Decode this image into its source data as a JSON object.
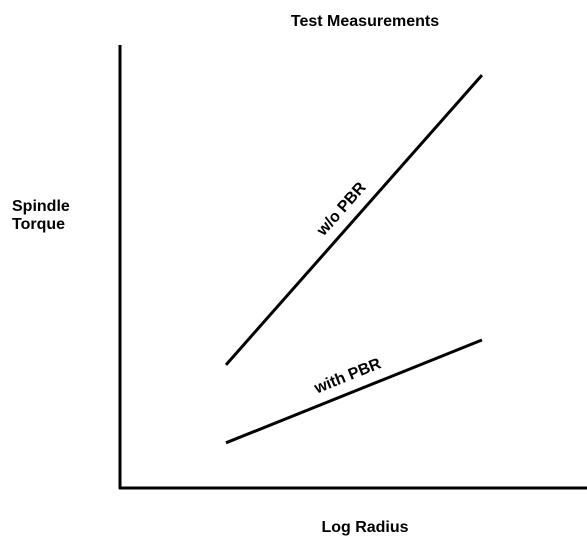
{
  "chart_data": {
    "type": "line",
    "title": "Test Measurements",
    "xlabel": "Log Radius",
    "ylabel": "Spindle Torque",
    "x": [
      22.7,
      77.5
    ],
    "series": [
      {
        "name": "w/o PBR",
        "color": "#000000",
        "values": [
          27.8,
          93.2
        ]
      },
      {
        "name": "with PBR",
        "color": "#000000",
        "values": [
          10.2,
          33.4
        ]
      }
    ],
    "xlim": [
      0,
      100
    ],
    "ylim": [
      0,
      100
    ],
    "grid": false
  }
}
